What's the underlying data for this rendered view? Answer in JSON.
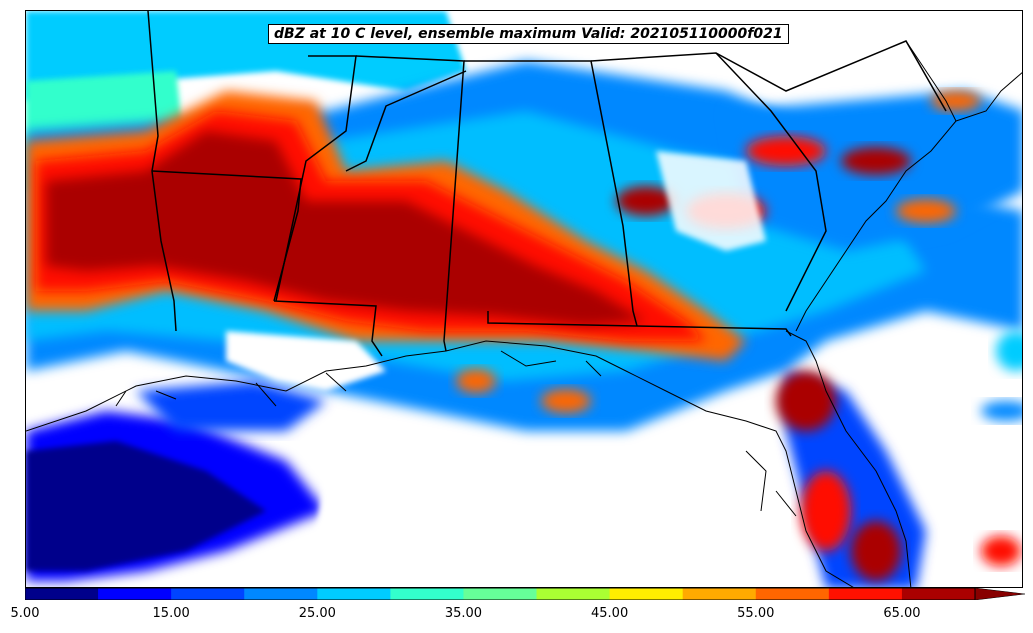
{
  "title": "dBZ at 10 C level, ensemble maximum Valid: 202105110000f021",
  "colorbar": {
    "min": 5,
    "max": 70,
    "extend": "max",
    "bins": [
      {
        "from": 5,
        "to": 10,
        "color": "#00008b"
      },
      {
        "from": 10,
        "to": 15,
        "color": "#0000ff"
      },
      {
        "from": 15,
        "to": 20,
        "color": "#0044ff"
      },
      {
        "from": 20,
        "to": 25,
        "color": "#0088ff"
      },
      {
        "from": 25,
        "to": 30,
        "color": "#00ccff"
      },
      {
        "from": 30,
        "to": 35,
        "color": "#33ffcc"
      },
      {
        "from": 35,
        "to": 40,
        "color": "#66ff99"
      },
      {
        "from": 40,
        "to": 45,
        "color": "#aaff33"
      },
      {
        "from": 45,
        "to": 50,
        "color": "#ffee00"
      },
      {
        "from": 50,
        "to": 55,
        "color": "#ffaa00"
      },
      {
        "from": 55,
        "to": 60,
        "color": "#ff6600"
      },
      {
        "from": 60,
        "to": 65,
        "color": "#ff1100"
      },
      {
        "from": 65,
        "to": 70,
        "color": "#aa0000"
      }
    ],
    "extend_color": "#880000",
    "ticks": [
      "5.00",
      "15.00",
      "25.00",
      "35.00",
      "45.00",
      "55.00",
      "65.00"
    ]
  }
}
